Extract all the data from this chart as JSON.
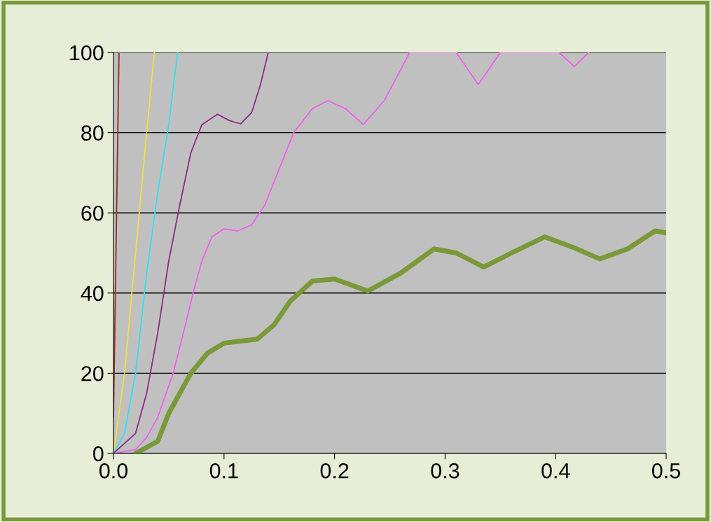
{
  "chart_data": {
    "type": "line",
    "xlim": [
      0,
      0.5
    ],
    "ylim": [
      0,
      100
    ],
    "xticks": [
      {
        "value": 0,
        "label": "0.0"
      },
      {
        "value": 0.1,
        "label": "0.1"
      },
      {
        "value": 0.2,
        "label": "0.2"
      },
      {
        "value": 0.3,
        "label": "0.3"
      },
      {
        "value": 0.4,
        "label": "0.4"
      },
      {
        "value": 0.5,
        "label": "0.5"
      }
    ],
    "yticks": [
      0,
      20,
      40,
      60,
      80,
      100
    ],
    "grid": "y",
    "legend": false,
    "marker": "none",
    "line_style": "solid",
    "series": [
      {
        "color": "#9a2a1a",
        "x": [
          0.0,
          0.005
        ],
        "values": [
          9,
          100
        ]
      },
      {
        "color": "#f0e040",
        "x": [
          0,
          0.01,
          0.02,
          0.03,
          0.037
        ],
        "values": [
          0,
          20,
          50,
          80,
          100
        ]
      },
      {
        "color": "#30e0f0",
        "x": [
          0,
          0.01,
          0.02,
          0.03,
          0.04,
          0.05,
          0.058
        ],
        "values": [
          0,
          5,
          20,
          45,
          65,
          82,
          100
        ]
      },
      {
        "color": "#8a2a8a",
        "x": [
          0,
          0.02,
          0.03,
          0.04,
          0.05,
          0.06,
          0.07,
          0.08,
          0.094,
          0.105,
          0.115,
          0.125,
          0.133,
          0.14
        ],
        "values": [
          0,
          5,
          15,
          30,
          48,
          62,
          75,
          82,
          84.6,
          83,
          82.2,
          85,
          92,
          100
        ]
      },
      {
        "color": "#f060f0",
        "x": [
          0,
          0.02,
          0.03,
          0.04,
          0.054,
          0.065,
          0.072,
          0.08,
          0.089,
          0.1,
          0.112,
          0.125,
          0.137,
          0.15,
          0.163,
          0.18,
          0.194,
          0.21,
          0.226,
          0.245,
          0.268,
          0.31,
          0.33,
          0.35,
          0.403,
          0.417,
          0.43
        ],
        "values": [
          0,
          1,
          4,
          9,
          20,
          32,
          40,
          48,
          54,
          56,
          55.5,
          57,
          62,
          71,
          80,
          86,
          88,
          86,
          82,
          88,
          100,
          100,
          92,
          100,
          100,
          96.5,
          100
        ]
      },
      {
        "color": "#7a9a3a",
        "x": [
          0.02,
          0.04,
          0.05,
          0.07,
          0.085,
          0.1,
          0.115,
          0.13,
          0.145,
          0.16,
          0.18,
          0.2,
          0.215,
          0.23,
          0.26,
          0.29,
          0.31,
          0.335,
          0.36,
          0.39,
          0.415,
          0.44,
          0.465,
          0.49,
          0.5
        ],
        "values": [
          0,
          3,
          10,
          20,
          25,
          27.5,
          28,
          28.5,
          32,
          38,
          43,
          43.5,
          42,
          40.5,
          45,
          51,
          50,
          46.5,
          50,
          54,
          51.5,
          48.5,
          51,
          55.5,
          55
        ]
      }
    ]
  }
}
